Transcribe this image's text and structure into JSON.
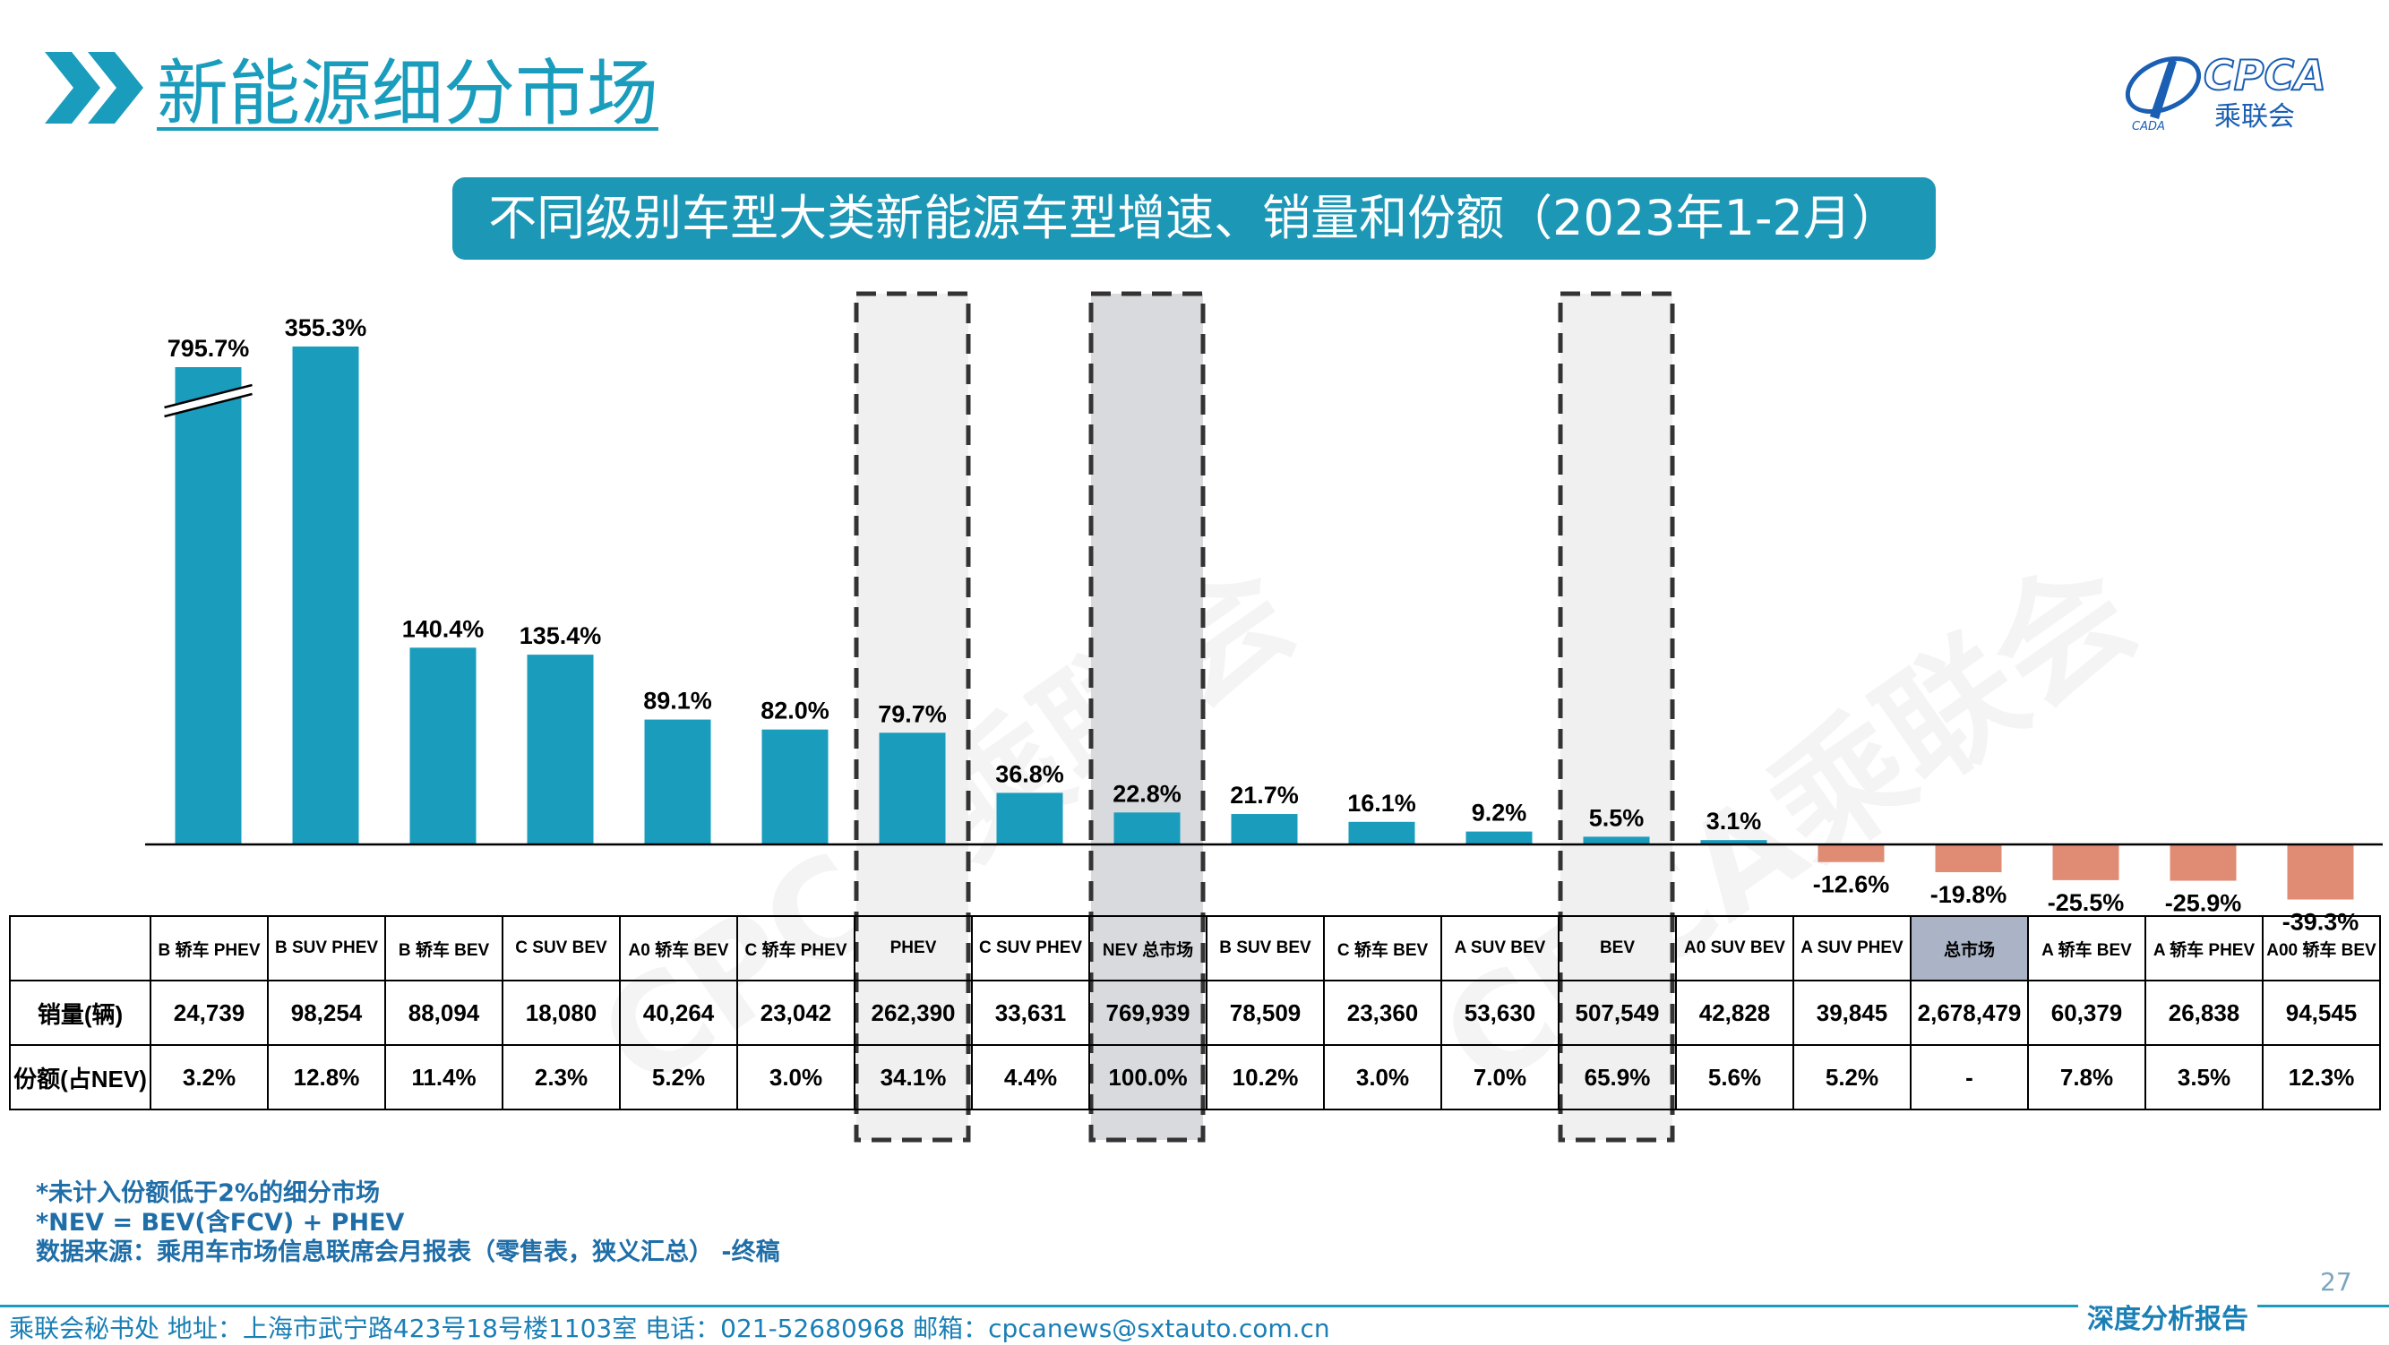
{
  "header": {
    "title": "新能源细分市场",
    "logo_text": "CPCA",
    "logo_sub": "乘联会",
    "logo_small": "CADA"
  },
  "banner": {
    "text": "不同级别车型大类新能源车型增速、销量和份额（2023年1-2月）"
  },
  "watermark": "CPCA乘联会",
  "colors": {
    "accent": "#1a9cbd",
    "positive_bar": "#1a9cbd",
    "negative_bar": "#e08c74",
    "highlight_box_light": "#f0f0f1",
    "highlight_box_dark": "#d9dade",
    "total_market_cell": "#aab4c6"
  },
  "chart_data": {
    "type": "bar",
    "title": "不同级别车型大类新能源车型增速、销量和份额（2023年1-2月）",
    "categories": [
      "B 轿车 PHEV",
      "B SUV PHEV",
      "B 轿车 BEV",
      "C SUV BEV",
      "A0 轿车 BEV",
      "C 轿车 PHEV",
      "PHEV",
      "C SUV PHEV",
      "NEV 总市场",
      "B SUV BEV",
      "C 轿车 BEV",
      "A SUV BEV",
      "BEV",
      "A0 SUV BEV",
      "A SUV PHEV",
      "总市场",
      "A 轿车 BEV",
      "A 轿车 PHEV",
      "A00 轿车 BEV"
    ],
    "series": [
      {
        "values": [
          795.7,
          355.3,
          140.4,
          135.4,
          89.1,
          82.0,
          79.7,
          36.8,
          22.8,
          21.7,
          16.1,
          9.2,
          5.5,
          3.1,
          -12.6,
          -19.8,
          -25.5,
          -25.9,
          -39.3
        ]
      }
    ],
    "value_labels": [
      "795.7%",
      "355.3%",
      "140.4%",
      "135.4%",
      "89.1%",
      "82.0%",
      "79.7%",
      "36.8%",
      "22.8%",
      "21.7%",
      "16.1%",
      "9.2%",
      "5.5%",
      "3.1%",
      "-12.6%",
      "-19.8%",
      "-25.5%",
      "-25.9%",
      "-39.3%"
    ],
    "axis_break": {
      "category": "B 轿车 PHEV",
      "displayed_cap": 400
    },
    "ylim": [
      -45,
      400
    ],
    "grid": false,
    "highlighted_categories": [
      "PHEV",
      "NEV 总市场",
      "BEV"
    ],
    "highlight_styles": [
      "light",
      "dark",
      "light"
    ]
  },
  "table": {
    "rows": [
      {
        "label": "销量(辆)",
        "values": [
          "24,739",
          "98,254",
          "88,094",
          "18,080",
          "40,264",
          "23,042",
          "262,390",
          "33,631",
          "769,939",
          "78,509",
          "23,360",
          "53,630",
          "507,549",
          "42,828",
          "39,845",
          "2,678,479",
          "60,379",
          "26,838",
          "94,545"
        ]
      },
      {
        "label": "份额(占NEV)",
        "values": [
          "3.2%",
          "12.8%",
          "11.4%",
          "2.3%",
          "5.2%",
          "3.0%",
          "34.1%",
          "4.4%",
          "100.0%",
          "10.2%",
          "3.0%",
          "7.0%",
          "65.9%",
          "5.6%",
          "5.2%",
          "-",
          "7.8%",
          "3.5%",
          "12.3%"
        ]
      }
    ]
  },
  "notes": {
    "note1": "*未计入份额低于2%的细分市场",
    "note2": "*NEV = BEV(含FCV) + PHEV",
    "note3": "数据来源：乘用车市场信息联席会月报表（零售表，狭义汇总） -终稿"
  },
  "page_number": "27",
  "footer": {
    "text": "乘联会秘书处   地址：上海市武宁路423号18号楼1103室   电话：021-52680968   邮箱：cpcanews@sxtauto.com.cn",
    "report_tag": "深度分析报告"
  }
}
